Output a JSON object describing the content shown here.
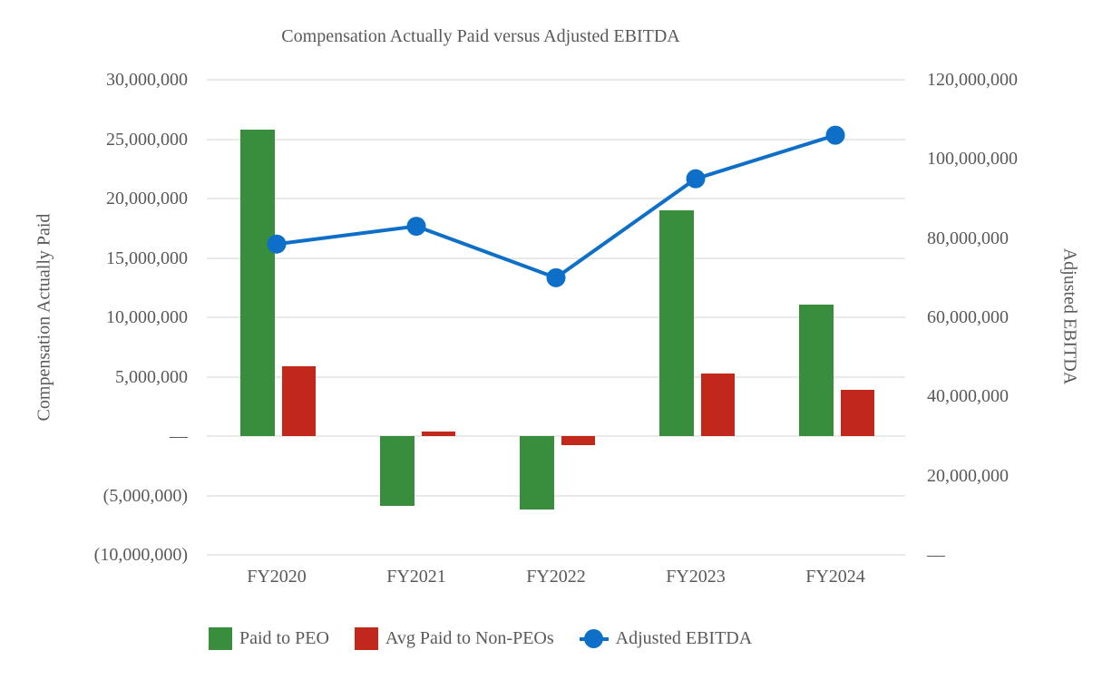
{
  "chart_data": {
    "type": "bar",
    "subtype": "clustered-bar-with-line-combo",
    "title": "Compensation Actually Paid versus Adjusted EBITDA",
    "categories": [
      "FY2020",
      "FY2021",
      "FY2022",
      "FY2023",
      "FY2024"
    ],
    "series": [
      {
        "name": "Paid to PEO",
        "type": "bar",
        "axis": "left",
        "color": "#388E3C",
        "values": [
          25800000,
          -5900000,
          -6200000,
          19000000,
          11100000
        ]
      },
      {
        "name": "Avg Paid to Non-PEOs",
        "type": "bar",
        "axis": "left",
        "color": "#C1271A",
        "values": [
          5900000,
          400000,
          -800000,
          5300000,
          3900000
        ]
      },
      {
        "name": "Adjusted EBITDA",
        "type": "line",
        "axis": "right",
        "color": "#0E6FC8",
        "values": [
          78500000,
          83000000,
          70000000,
          95000000,
          106000000
        ]
      }
    ],
    "left_axis": {
      "title": "Compensation Actually Paid",
      "min": -10000000,
      "max": 30000000,
      "ticks": [
        {
          "value": 30000000,
          "label": "30,000,000"
        },
        {
          "value": 25000000,
          "label": "25,000,000"
        },
        {
          "value": 20000000,
          "label": "20,000,000"
        },
        {
          "value": 15000000,
          "label": "15,000,000"
        },
        {
          "value": 10000000,
          "label": "10,000,000"
        },
        {
          "value": 5000000,
          "label": "5,000,000"
        },
        {
          "value": 0,
          "label": "—"
        },
        {
          "value": -5000000,
          "label": "(5,000,000)"
        },
        {
          "value": -10000000,
          "label": "(10,000,000)"
        }
      ]
    },
    "right_axis": {
      "title": "Adjusted EBITDA",
      "min": 0,
      "max": 120000000,
      "ticks": [
        {
          "value": 120000000,
          "label": "120,000,000"
        },
        {
          "value": 100000000,
          "label": "100,000,000"
        },
        {
          "value": 80000000,
          "label": "80,000,000"
        },
        {
          "value": 60000000,
          "label": "60,000,000"
        },
        {
          "value": 40000000,
          "label": "40,000,000"
        },
        {
          "value": 20000000,
          "label": "20,000,000"
        },
        {
          "value": 0,
          "label": "—"
        }
      ]
    },
    "legend": {
      "position": "bottom",
      "entries": [
        "Paid to PEO",
        "Avg Paid to Non-PEOs",
        "Adjusted EBITDA"
      ]
    },
    "grid": true
  },
  "colors": {
    "text": "#595959",
    "gridline": "#E9E9E9",
    "background": "#FFFFFF"
  }
}
